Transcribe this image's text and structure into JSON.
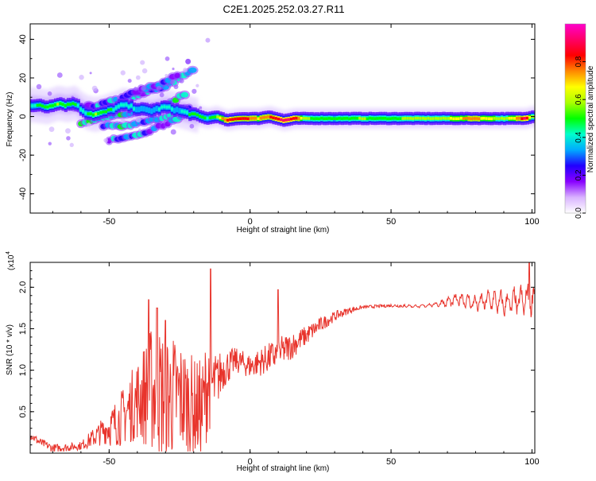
{
  "title": "C2E1.2025.252.03.27.R11",
  "colorbar": {
    "label": "Normalized spectral amplitude",
    "ticks": [
      "0.0",
      "0.2",
      "0.4",
      "0.6",
      "0.8"
    ],
    "colors": [
      "#ffffff",
      "#d9b3ff",
      "#8800ff",
      "#2200ff",
      "#00aaff",
      "#00ffcc",
      "#00ff00",
      "#aaff00",
      "#ffff00",
      "#ff8800",
      "#ff0000",
      "#ff0066",
      "#ff00cc"
    ]
  },
  "chart_data": [
    {
      "type": "heatmap",
      "xlabel": "Height of straight line (km)",
      "ylabel": "Frequency (Hz)",
      "xlim": [
        -78,
        101
      ],
      "ylim": [
        -50,
        48
      ],
      "xticks": [
        "-50",
        "0",
        "50",
        "100"
      ],
      "yticks": [
        "40",
        "20",
        "0",
        "-20",
        "-40"
      ],
      "zrange": [
        0,
        1
      ],
      "main_band": [
        {
          "x": -77,
          "y": 6,
          "z": 0.45
        },
        {
          "x": -72,
          "y": 5,
          "z": 0.5
        },
        {
          "x": -68,
          "y": 7,
          "z": 0.55
        },
        {
          "x": -65,
          "y": 6,
          "z": 0.5
        },
        {
          "x": -62,
          "y": 7,
          "z": 0.5
        },
        {
          "x": -60,
          "y": 4,
          "z": 0.4
        },
        {
          "x": -58,
          "y": 2,
          "z": 0.45
        },
        {
          "x": -55,
          "y": 1,
          "z": 0.55
        },
        {
          "x": -52,
          "y": 2,
          "z": 0.5
        },
        {
          "x": -48,
          "y": 4,
          "z": 0.45
        },
        {
          "x": -45,
          "y": 6,
          "z": 0.4
        },
        {
          "x": -42,
          "y": 5,
          "z": 0.4
        },
        {
          "x": -40,
          "y": 4,
          "z": 0.35
        },
        {
          "x": -35,
          "y": 3,
          "z": 0.35
        },
        {
          "x": -30,
          "y": 5,
          "z": 0.4
        },
        {
          "x": -25,
          "y": 3,
          "z": 0.35
        },
        {
          "x": -20,
          "y": 1,
          "z": 0.5
        },
        {
          "x": -15,
          "y": -1,
          "z": 0.45
        },
        {
          "x": -12,
          "y": 0,
          "z": 0.5
        },
        {
          "x": -8,
          "y": -2,
          "z": 0.85
        },
        {
          "x": -4,
          "y": -1,
          "z": 0.8
        },
        {
          "x": 0,
          "y": -1,
          "z": 0.8
        },
        {
          "x": 3,
          "y": -1,
          "z": 0.7
        },
        {
          "x": 7,
          "y": 0,
          "z": 0.8
        },
        {
          "x": 12,
          "y": -2,
          "z": 0.9
        },
        {
          "x": 16,
          "y": -1,
          "z": 0.85
        },
        {
          "x": 20,
          "y": -1,
          "z": 0.55
        },
        {
          "x": 30,
          "y": -1,
          "z": 0.5
        },
        {
          "x": 40,
          "y": -1,
          "z": 0.55
        },
        {
          "x": 50,
          "y": -1,
          "z": 0.5
        },
        {
          "x": 55,
          "y": -1,
          "z": 0.55
        },
        {
          "x": 62,
          "y": -1,
          "z": 0.6
        },
        {
          "x": 70,
          "y": -1,
          "z": 0.6
        },
        {
          "x": 75,
          "y": -1,
          "z": 0.7
        },
        {
          "x": 80,
          "y": -1,
          "z": 0.75
        },
        {
          "x": 85,
          "y": -1,
          "z": 0.65
        },
        {
          "x": 90,
          "y": -1,
          "z": 0.55
        },
        {
          "x": 95,
          "y": -1,
          "z": 0.75
        },
        {
          "x": 98,
          "y": -1,
          "z": 0.9
        },
        {
          "x": 100,
          "y": 0,
          "z": 0.6
        }
      ],
      "secondary_bands": [
        {
          "x": [
            -60,
            -52,
            -45,
            -38,
            -30,
            -25,
            -22
          ],
          "y": [
            -3,
            -1,
            1,
            3,
            6,
            10,
            12
          ],
          "z": 0.4
        },
        {
          "x": [
            -62,
            -55,
            -48,
            -40,
            -33,
            -27,
            -22,
            -20
          ],
          "y": [
            4,
            6,
            8,
            11,
            14,
            18,
            22,
            25
          ],
          "z": 0.3
        },
        {
          "x": [
            -52,
            -45,
            -38,
            -30,
            -25,
            -20
          ],
          "y": [
            -5,
            -5,
            -3,
            0,
            3,
            6
          ],
          "z": 0.35
        },
        {
          "x": [
            -50,
            -42,
            -35,
            -28,
            -22
          ],
          "y": [
            -12,
            -10,
            -7,
            -3,
            2
          ],
          "z": 0.3
        },
        {
          "x": [
            -45,
            -38,
            -30,
            -25
          ],
          "y": [
            10,
            14,
            18,
            22
          ],
          "z": 0.2
        }
      ]
    },
    {
      "type": "line",
      "xlabel": "Height of straight line (km)",
      "ylabel": "SNR (10 * v/v)",
      "yunit_label": "(x10",
      "yunit_exp": "4",
      "xlim": [
        -78,
        101
      ],
      "ylim": [
        0,
        2.3
      ],
      "xticks": [
        "-50",
        "0",
        "50",
        "100"
      ],
      "yticks": [
        "0.5",
        "1.0",
        "1.5",
        "2.0"
      ],
      "color": "#e8342c",
      "series_envelope": {
        "x": [
          -78,
          -75,
          -70,
          -65,
          -60,
          -55,
          -50,
          -45,
          -40,
          -35,
          -30,
          -25,
          -20,
          -17,
          -15,
          -13,
          -10,
          -5,
          0,
          5,
          10,
          15,
          20,
          25,
          30,
          35,
          40,
          50,
          60,
          65,
          70,
          75,
          80,
          85,
          90,
          95,
          100
        ],
        "y": [
          0.22,
          0.14,
          0.06,
          0.07,
          0.09,
          0.2,
          0.32,
          0.48,
          0.7,
          0.85,
          0.78,
          0.75,
          0.62,
          0.55,
          0.95,
          0.85,
          1.0,
          1.12,
          1.05,
          1.12,
          1.2,
          1.3,
          1.42,
          1.55,
          1.65,
          1.72,
          1.76,
          1.78,
          1.77,
          1.79,
          1.82,
          1.86,
          1.8,
          1.85,
          1.8,
          1.83,
          1.85
        ]
      },
      "noise_amplitude": {
        "x": [
          -78,
          -60,
          -50,
          -40,
          -35,
          -30,
          -25,
          -20,
          -15,
          -12,
          -5,
          0,
          10,
          20,
          30,
          40,
          50,
          60,
          65,
          70,
          80,
          90,
          100
        ],
        "y": [
          0.05,
          0.05,
          0.2,
          0.45,
          0.7,
          0.75,
          0.65,
          0.55,
          0.6,
          0.3,
          0.15,
          0.15,
          0.2,
          0.12,
          0.06,
          0.02,
          0.02,
          0.02,
          0.03,
          0.08,
          0.12,
          0.18,
          0.25
        ]
      },
      "spikes": [
        {
          "x": -36,
          "y": 1.85
        },
        {
          "x": -33,
          "y": 1.75
        },
        {
          "x": -30,
          "y": 1.6
        },
        {
          "x": -14,
          "y": 2.22
        },
        {
          "x": 10,
          "y": 1.97
        },
        {
          "x": 99,
          "y": 2.32
        }
      ]
    }
  ]
}
